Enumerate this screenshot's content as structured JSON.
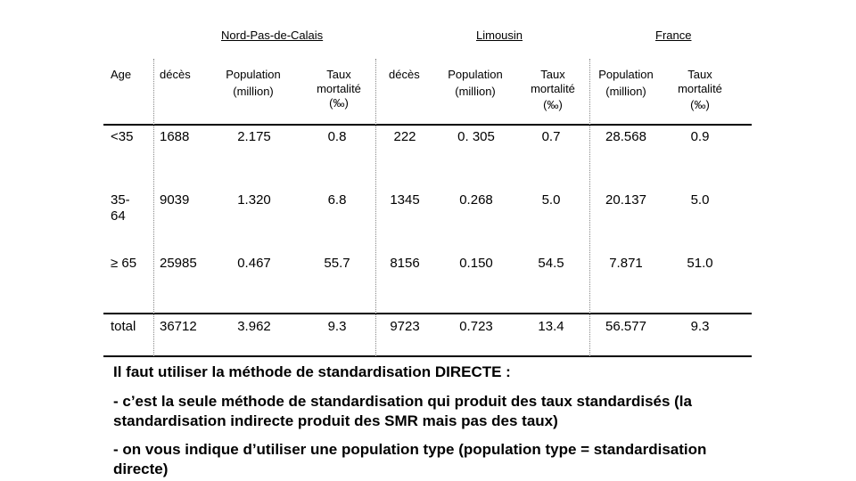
{
  "regions": {
    "npdc": "Nord-Pas-de-Calais",
    "limousin": "Limousin",
    "france": "France"
  },
  "headers": {
    "age": "Age",
    "deces": "décès",
    "population_l1": "Population",
    "population_l2": "(million)",
    "taux_l1": "Taux",
    "taux_l2": "mortalité",
    "taux_l3": "(‰)"
  },
  "rows": [
    {
      "age": "<35",
      "npdc_deces": "1688",
      "npdc_pop": "2.175",
      "npdc_taux": "0.8",
      "lim_deces": "222",
      "lim_pop": "0. 305",
      "lim_taux": "0.7",
      "fr_pop": "28.568",
      "fr_taux": "0.9"
    },
    {
      "age": "35-\n64",
      "npdc_deces": "9039",
      "npdc_pop": "1.320",
      "npdc_taux": "6.8",
      "lim_deces": "1345",
      "lim_pop": "0.268",
      "lim_taux": "5.0",
      "fr_pop": "20.137",
      "fr_taux": "5.0"
    },
    {
      "age": "≥ 65",
      "npdc_deces": "25985",
      "npdc_pop": "0.467",
      "npdc_taux": "55.7",
      "lim_deces": "8156",
      "lim_pop": "0.150",
      "lim_taux": "54.5",
      "fr_pop": "7.871",
      "fr_taux": "51.0"
    },
    {
      "age": "total",
      "npdc_deces": "36712",
      "npdc_pop": "3.962",
      "npdc_taux": "9.3",
      "lim_deces": "9723",
      "lim_pop": "0.723",
      "lim_taux": "13.4",
      "fr_pop": "56.577",
      "fr_taux": "9.3"
    }
  ],
  "notes": {
    "line1": "Il faut utiliser la méthode de standardisation DIRECTE :",
    "line2": "- c’est la seule méthode de standardisation qui produit des taux standardisés (la standardisation indirecte produit des SMR mais pas des taux)",
    "line3": "- on vous indique d’utiliser une population type (population type = standardisation directe)"
  }
}
